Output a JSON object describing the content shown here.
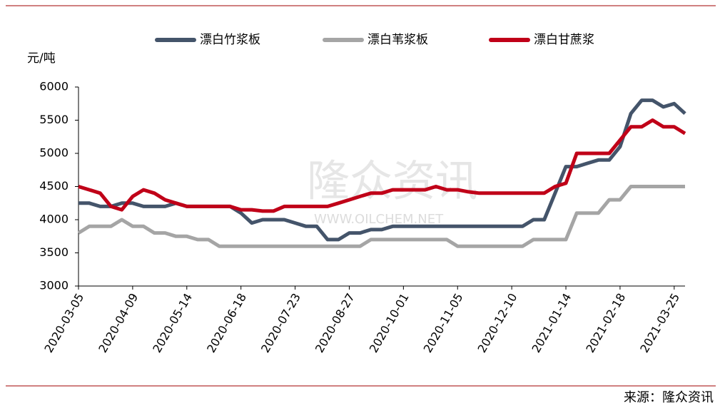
{
  "chart_data": {
    "type": "line",
    "y_label": "元/吨",
    "source": "来源：隆众资讯",
    "watermark": "隆众资讯",
    "watermark_url": "WWW.OILCHEM.NET",
    "x": [
      "2020-03-05",
      "2020-03-12",
      "2020-03-19",
      "2020-03-26",
      "2020-04-02",
      "2020-04-09",
      "2020-04-16",
      "2020-04-23",
      "2020-04-30",
      "2020-05-07",
      "2020-05-14",
      "2020-05-21",
      "2020-05-28",
      "2020-06-04",
      "2020-06-11",
      "2020-06-18",
      "2020-06-25",
      "2020-07-02",
      "2020-07-09",
      "2020-07-16",
      "2020-07-23",
      "2020-07-30",
      "2020-08-06",
      "2020-08-13",
      "2020-08-20",
      "2020-08-27",
      "2020-09-03",
      "2020-09-10",
      "2020-09-17",
      "2020-09-24",
      "2020-10-01",
      "2020-10-08",
      "2020-10-15",
      "2020-10-22",
      "2020-10-29",
      "2020-11-05",
      "2020-11-12",
      "2020-11-19",
      "2020-11-26",
      "2020-12-03",
      "2020-12-10",
      "2020-12-17",
      "2020-12-24",
      "2020-12-31",
      "2021-01-07",
      "2021-01-14",
      "2021-01-21",
      "2021-01-28",
      "2021-02-04",
      "2021-02-11",
      "2021-02-18",
      "2021-02-25",
      "2021-03-04",
      "2021-03-11",
      "2021-03-18",
      "2021-03-25",
      "2021-04-01"
    ],
    "xlim": [
      "2020-03-05",
      "2021-04-01"
    ],
    "xticks": [
      "2020-03-05",
      "2020-04-09",
      "2020-05-14",
      "2020-06-18",
      "2020-07-23",
      "2020-08-27",
      "2020-10-01",
      "2020-11-05",
      "2020-12-10",
      "2021-01-14",
      "2021-02-18",
      "2021-03-25"
    ],
    "ylim": [
      3000,
      6000
    ],
    "yticks": [
      3000,
      3500,
      4000,
      4500,
      5000,
      5500,
      6000
    ],
    "series": [
      {
        "name": "漂白竹浆板",
        "color": "#44546a",
        "values": [
          4250,
          4250,
          4200,
          4200,
          4250,
          4250,
          4200,
          4200,
          4200,
          4250,
          4200,
          4200,
          4200,
          4200,
          4200,
          4100,
          3950,
          4000,
          4000,
          4000,
          3950,
          3900,
          3900,
          3700,
          3700,
          3800,
          3800,
          3850,
          3850,
          3900,
          3900,
          3900,
          3900,
          3900,
          3900,
          3900,
          3900,
          3900,
          3900,
          3900,
          3900,
          3900,
          4000,
          4000,
          4400,
          4800,
          4800,
          4850,
          4900,
          4900,
          5100,
          5600,
          5800,
          5800,
          5700,
          5750,
          5600
        ]
      },
      {
        "name": "漂白苇浆板",
        "color": "#a5a5a5",
        "values": [
          3800,
          3900,
          3900,
          3900,
          4000,
          3900,
          3900,
          3800,
          3800,
          3750,
          3750,
          3700,
          3700,
          3600,
          3600,
          3600,
          3600,
          3600,
          3600,
          3600,
          3600,
          3600,
          3600,
          3600,
          3600,
          3600,
          3600,
          3700,
          3700,
          3700,
          3700,
          3700,
          3700,
          3700,
          3700,
          3600,
          3600,
          3600,
          3600,
          3600,
          3600,
          3600,
          3700,
          3700,
          3700,
          3700,
          4100,
          4100,
          4100,
          4300,
          4300,
          4500,
          4500,
          4500,
          4500,
          4500,
          4500
        ]
      },
      {
        "name": "漂白甘蔗浆",
        "color": "#c00018",
        "values": [
          4500,
          4450,
          4400,
          4200,
          4150,
          4350,
          4450,
          4400,
          4300,
          4250,
          4200,
          4200,
          4200,
          4200,
          4200,
          4150,
          4150,
          4130,
          4130,
          4200,
          4200,
          4200,
          4200,
          4200,
          4250,
          4300,
          4350,
          4400,
          4400,
          4450,
          4450,
          4450,
          4450,
          4500,
          4450,
          4450,
          4420,
          4400,
          4400,
          4400,
          4400,
          4400,
          4400,
          4400,
          4500,
          4550,
          5000,
          5000,
          5000,
          5000,
          5200,
          5400,
          5400,
          5500,
          5400,
          5400,
          5300
        ]
      }
    ]
  }
}
